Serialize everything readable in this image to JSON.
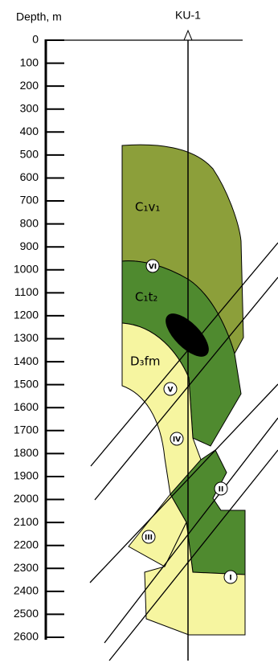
{
  "header": {
    "depth_label": "Depth, m",
    "well": "KU-1"
  },
  "depth_axis": {
    "lim": [
      0,
      2600
    ],
    "ticks": [
      0,
      100,
      200,
      300,
      400,
      500,
      600,
      700,
      800,
      900,
      1000,
      1100,
      1200,
      1300,
      1400,
      1500,
      1600,
      1700,
      1800,
      1900,
      2000,
      2100,
      2200,
      2300,
      2400,
      2500,
      2600
    ]
  },
  "formations": [
    {
      "label": "C₁v₁"
    },
    {
      "label": "C₁t₂"
    },
    {
      "label": "D₃fm"
    }
  ],
  "faults": [
    {
      "label": "VI"
    },
    {
      "label": "V"
    },
    {
      "label": "IV"
    },
    {
      "label": "III"
    },
    {
      "label": "II"
    },
    {
      "label": "I"
    }
  ]
}
